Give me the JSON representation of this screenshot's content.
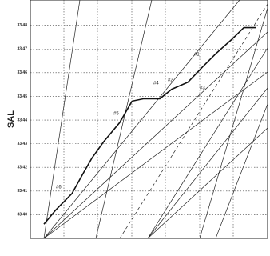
{
  "chart_data": {
    "type": "line",
    "y_label": "SAL",
    "x": [
      0.4,
      0.75,
      1.23,
      1.58,
      1.82,
      2.17,
      2.64,
      3.0,
      3.35,
      3.82,
      4.17,
      4.65,
      5.12,
      5.47,
      5.94,
      6.3,
      6.65
    ],
    "series": [
      {
        "color": "#111111",
        "values": [
          33.396,
          33.402,
          33.409,
          33.418,
          33.424,
          33.431,
          33.439,
          33.448,
          33.449,
          33.449,
          33.453,
          33.456,
          33.463,
          33.468,
          33.474,
          33.479,
          33.479
        ]
      }
    ],
    "xlim": [
      0,
      7
    ],
    "ylim": [
      33.39,
      33.4907
    ],
    "yticks": [
      {
        "value": 33.4,
        "label": "33.40"
      },
      33.41,
      33.42,
      33.43,
      33.44,
      33.45,
      33.46,
      33.47,
      33.48
    ],
    "annotations": [
      "#1",
      "#2",
      "#3",
      "#4",
      "#5",
      "#6"
    ],
    "grid": true
  }
}
